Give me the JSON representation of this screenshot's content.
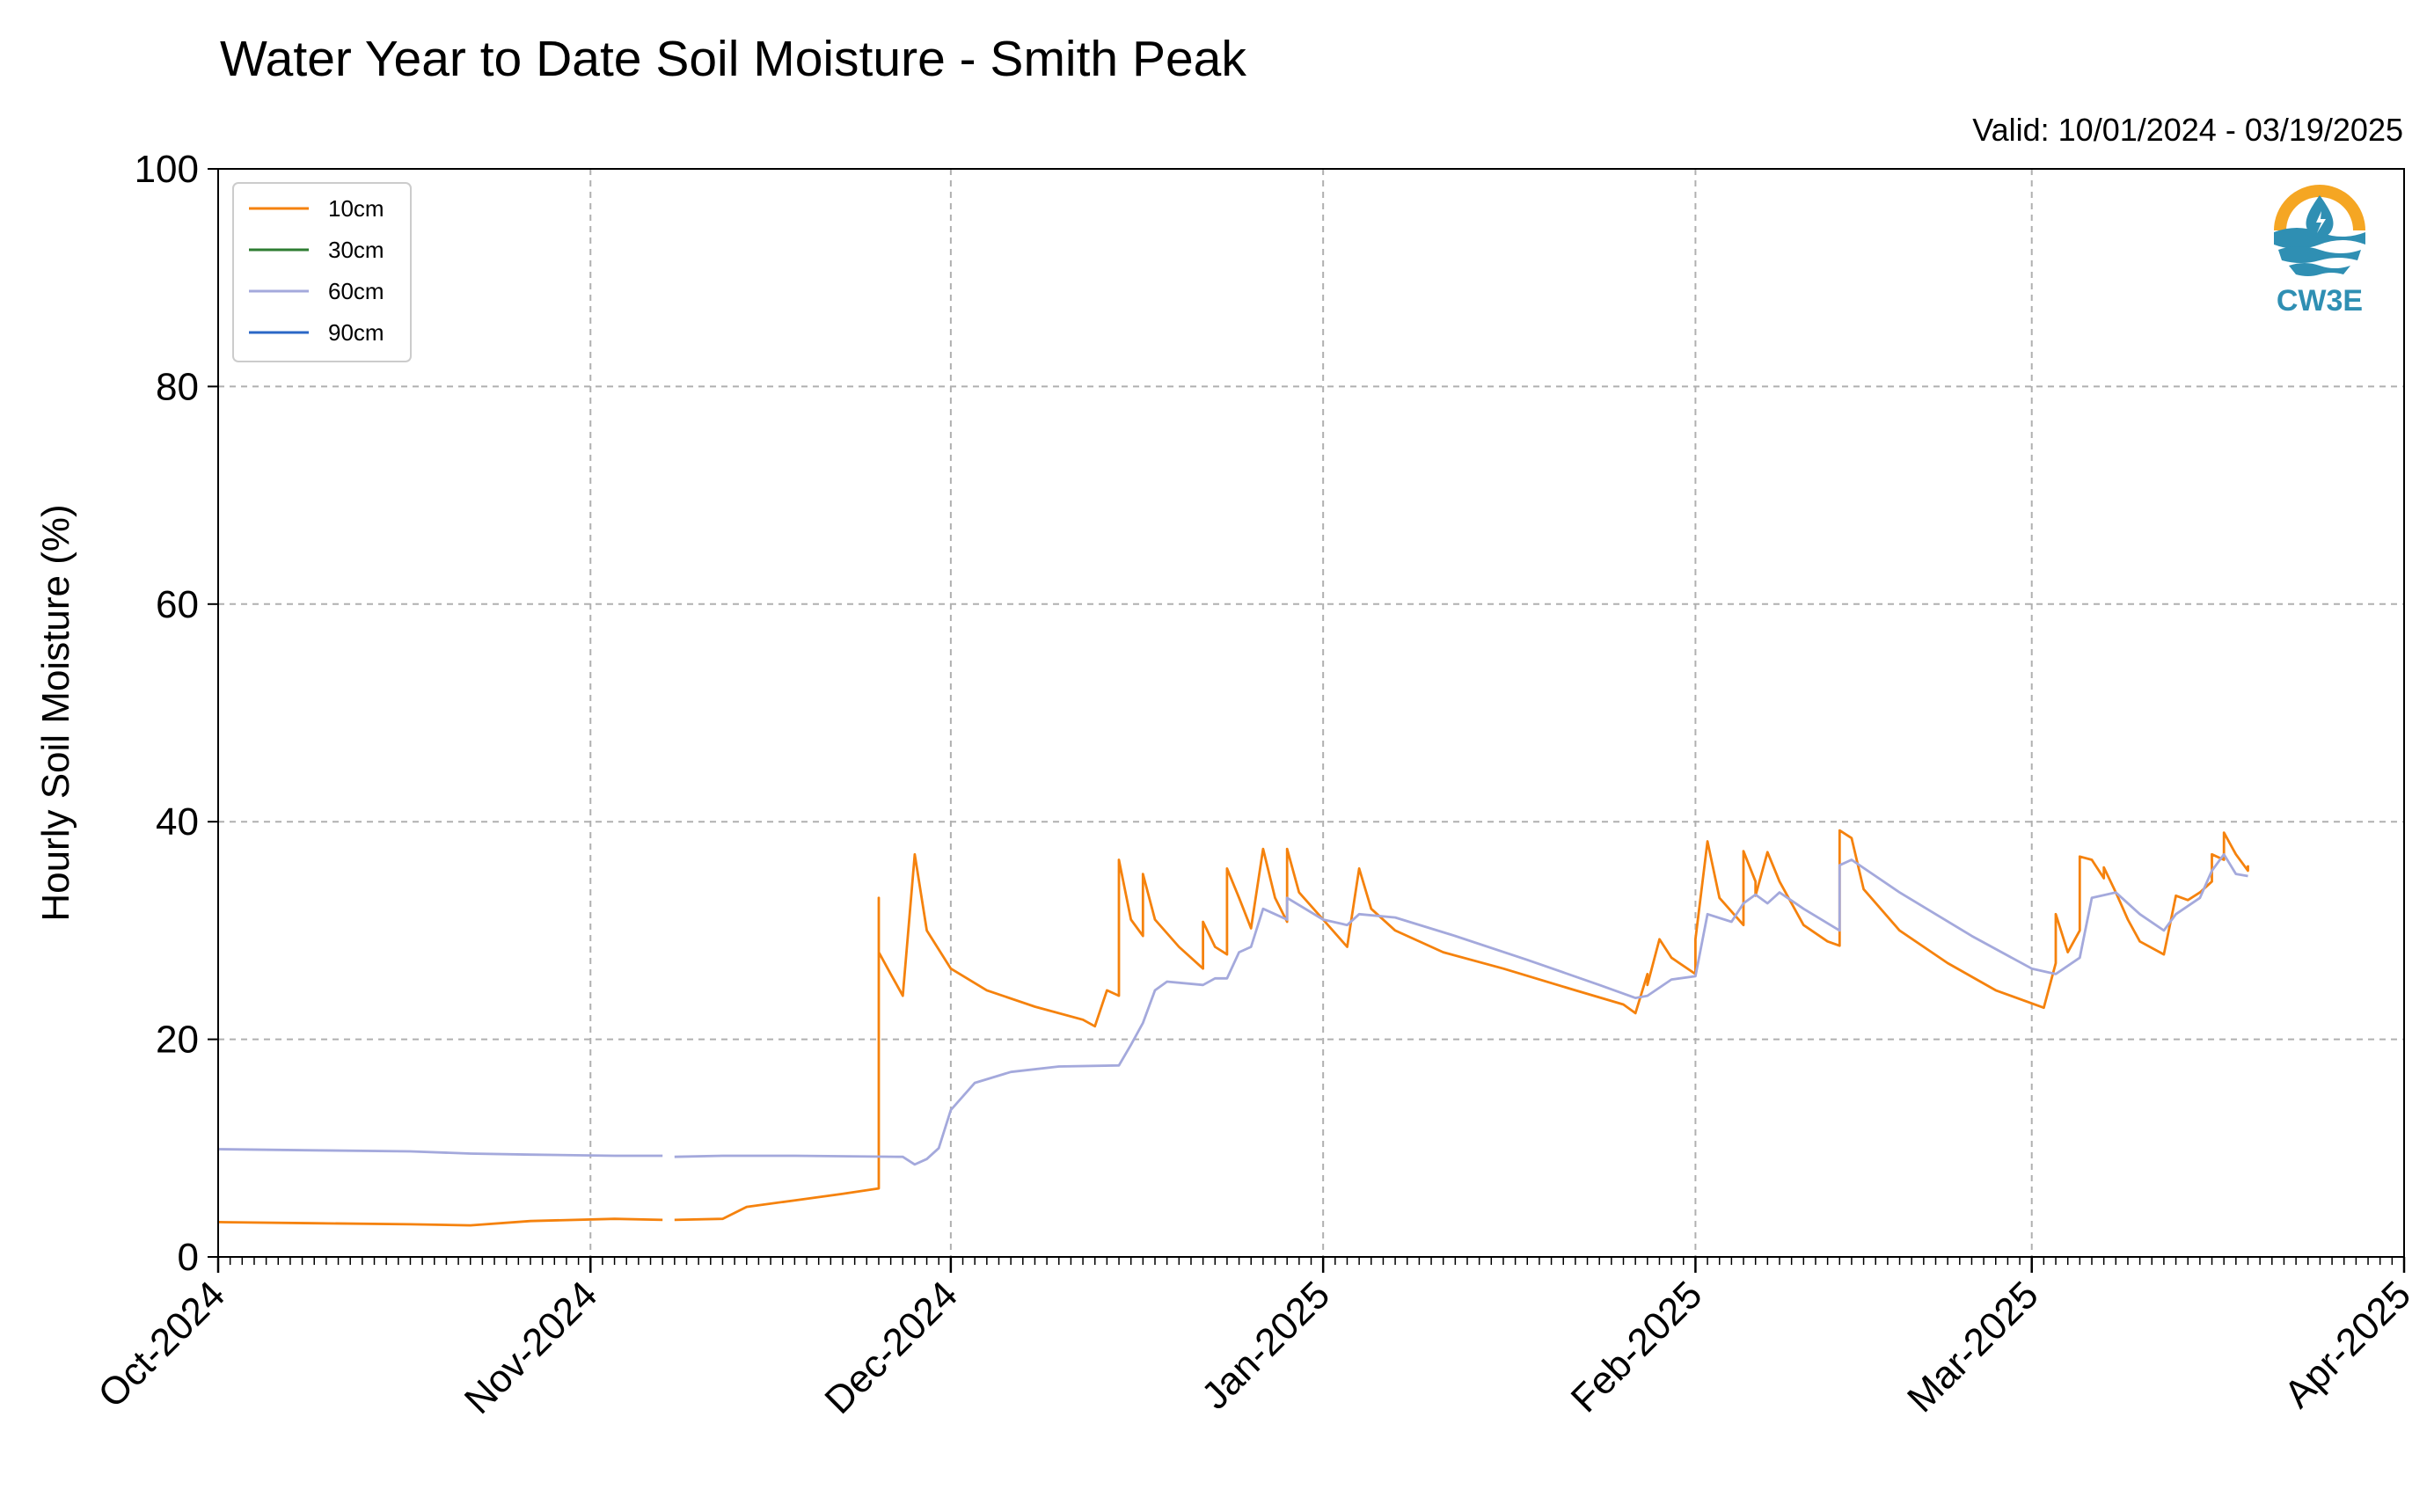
{
  "chart_data": {
    "type": "line",
    "title": "Water Year to Date Soil Moisture - Smith Peak",
    "subtitle": "Valid: 10/01/2024 - 03/19/2025",
    "ylabel": "Hourly Soil Moisture (%)",
    "xlabel": "",
    "x_range": [
      "2024-10-01",
      "2025-04-01"
    ],
    "ylim": [
      0,
      100
    ],
    "y_ticks": [
      0,
      20,
      40,
      60,
      80,
      100
    ],
    "x_ticks": [
      {
        "date": "2024-10-01",
        "label": "Oct-2024"
      },
      {
        "date": "2024-11-01",
        "label": "Nov-2024"
      },
      {
        "date": "2024-12-01",
        "label": "Dec-2024"
      },
      {
        "date": "2025-01-01",
        "label": "Jan-2025"
      },
      {
        "date": "2025-02-01",
        "label": "Feb-2025"
      },
      {
        "date": "2025-03-01",
        "label": "Mar-2025"
      },
      {
        "date": "2025-04-01",
        "label": "Apr-2025"
      }
    ],
    "grid": true,
    "legend_position": "top-left",
    "logo_text": "CW3E",
    "series": [
      {
        "name": "10cm",
        "color": "#f5820d",
        "points": [
          [
            "2024-10-01",
            3.2
          ],
          [
            "2024-10-09",
            3.1
          ],
          [
            "2024-10-17",
            3.0
          ],
          [
            "2024-10-22",
            2.9
          ],
          [
            "2024-10-27",
            3.3
          ],
          [
            "2024-11-03",
            3.5
          ],
          [
            "2024-11-07",
            3.4
          ],
          null,
          [
            "2024-11-08",
            3.4
          ],
          [
            "2024-11-12",
            3.5
          ],
          [
            "2024-11-14",
            4.6
          ],
          [
            "2024-11-18",
            5.2
          ],
          [
            "2024-11-22",
            5.8
          ],
          [
            "2024-11-25",
            6.3
          ],
          [
            "2024-11-25",
            33.0
          ],
          [
            "2024-11-25",
            28.0
          ],
          [
            "2024-11-26",
            26.0
          ],
          [
            "2024-11-27",
            24.0
          ],
          [
            "2024-11-28",
            37.0
          ],
          [
            "2024-11-29",
            30.0
          ],
          [
            "2024-12-01",
            26.5
          ],
          [
            "2024-12-04",
            24.5
          ],
          [
            "2024-12-08",
            23.0
          ],
          [
            "2024-12-12",
            21.8
          ],
          [
            "2024-12-13",
            21.2
          ],
          [
            "2024-12-14",
            24.5
          ],
          [
            "2024-12-15",
            24.0
          ],
          [
            "2024-12-15",
            36.5
          ],
          [
            "2024-12-16",
            31.0
          ],
          [
            "2024-12-17",
            29.5
          ],
          [
            "2024-12-17",
            35.2
          ],
          [
            "2024-12-18",
            31.0
          ],
          [
            "2024-12-20",
            28.5
          ],
          [
            "2024-12-22",
            26.5
          ],
          [
            "2024-12-22",
            30.8
          ],
          [
            "2024-12-23",
            28.5
          ],
          [
            "2024-12-24",
            27.8
          ],
          [
            "2024-12-24",
            35.7
          ],
          [
            "2024-12-25",
            33.0
          ],
          [
            "2024-12-26",
            30.2
          ],
          [
            "2024-12-27",
            37.5
          ],
          [
            "2024-12-28",
            33.0
          ],
          [
            "2024-12-29",
            30.8
          ],
          [
            "2024-12-29",
            37.5
          ],
          [
            "2024-12-30",
            33.5
          ],
          [
            "2025-01-01",
            31.0
          ],
          [
            "2025-01-03",
            28.5
          ],
          [
            "2025-01-04",
            35.7
          ],
          [
            "2025-01-05",
            32.0
          ],
          [
            "2025-01-07",
            30.0
          ],
          [
            "2025-01-11",
            28.0
          ],
          [
            "2025-01-16",
            26.5
          ],
          [
            "2025-01-22",
            24.5
          ],
          [
            "2025-01-26",
            23.2
          ],
          [
            "2025-01-27",
            22.4
          ],
          [
            "2025-01-28",
            26.0
          ],
          [
            "2025-01-28",
            25.0
          ],
          [
            "2025-01-29",
            29.2
          ],
          [
            "2025-01-30",
            27.5
          ],
          [
            "2025-02-01",
            26.0
          ],
          [
            "2025-02-01",
            29.2
          ],
          [
            "2025-02-02",
            38.2
          ],
          [
            "2025-02-03",
            33.0
          ],
          [
            "2025-02-05",
            30.5
          ],
          [
            "2025-02-05",
            37.3
          ],
          [
            "2025-02-06",
            34.5
          ],
          [
            "2025-02-06",
            33.2
          ],
          [
            "2025-02-07",
            37.2
          ],
          [
            "2025-02-08",
            34.5
          ],
          [
            "2025-02-10",
            30.5
          ],
          [
            "2025-02-12",
            29.0
          ],
          [
            "2025-02-13",
            28.6
          ],
          [
            "2025-02-13",
            39.2
          ],
          [
            "2025-02-14",
            38.5
          ],
          [
            "2025-02-15",
            33.8
          ],
          [
            "2025-02-18",
            30.0
          ],
          [
            "2025-02-22",
            27.0
          ],
          [
            "2025-02-26",
            24.5
          ],
          [
            "2025-03-02",
            22.9
          ],
          [
            "2025-03-03",
            27.0
          ],
          [
            "2025-03-03",
            31.5
          ],
          [
            "2025-03-04",
            28.0
          ],
          [
            "2025-03-05",
            30.0
          ],
          [
            "2025-03-05",
            36.8
          ],
          [
            "2025-03-06",
            36.5
          ],
          [
            "2025-03-07",
            34.8
          ],
          [
            "2025-03-07",
            35.8
          ],
          [
            "2025-03-08",
            33.5
          ],
          [
            "2025-03-09",
            31.0
          ],
          [
            "2025-03-10",
            29.0
          ],
          [
            "2025-03-12",
            27.8
          ],
          [
            "2025-03-13",
            33.2
          ],
          [
            "2025-03-14",
            32.8
          ],
          [
            "2025-03-15",
            33.5
          ],
          [
            "2025-03-16",
            34.5
          ],
          [
            "2025-03-16",
            37.0
          ],
          [
            "2025-03-17",
            36.5
          ],
          [
            "2025-03-17",
            39.0
          ],
          [
            "2025-03-18",
            37.0
          ],
          [
            "2025-03-19",
            35.5
          ],
          [
            "2025-03-19",
            36.0
          ]
        ]
      },
      {
        "name": "30cm",
        "color": "#2e7d32",
        "points": []
      },
      {
        "name": "60cm",
        "color": "#a4a9dc",
        "points": [
          [
            "2024-10-01",
            9.9
          ],
          [
            "2024-10-09",
            9.8
          ],
          [
            "2024-10-17",
            9.7
          ],
          [
            "2024-10-22",
            9.5
          ],
          [
            "2024-10-27",
            9.4
          ],
          [
            "2024-11-03",
            9.3
          ],
          [
            "2024-11-07",
            9.3
          ],
          null,
          [
            "2024-11-08",
            9.2
          ],
          [
            "2024-11-12",
            9.3
          ],
          [
            "2024-11-18",
            9.3
          ],
          [
            "2024-11-27",
            9.2
          ],
          [
            "2024-11-28",
            8.5
          ],
          [
            "2024-11-29",
            9.0
          ],
          [
            "2024-11-30",
            10.0
          ],
          [
            "2024-12-01",
            13.5
          ],
          [
            "2024-12-03",
            16.0
          ],
          [
            "2024-12-06",
            17.0
          ],
          [
            "2024-12-10",
            17.5
          ],
          [
            "2024-12-15",
            17.6
          ],
          [
            "2024-12-16",
            19.5
          ],
          [
            "2024-12-17",
            21.5
          ],
          [
            "2024-12-18",
            24.5
          ],
          [
            "2024-12-19",
            25.3
          ],
          [
            "2024-12-22",
            25.0
          ],
          [
            "2024-12-23",
            25.6
          ],
          [
            "2024-12-24",
            25.6
          ],
          [
            "2024-12-25",
            28.0
          ],
          [
            "2024-12-26",
            28.5
          ],
          [
            "2024-12-27",
            32.0
          ],
          [
            "2024-12-28",
            31.5
          ],
          [
            "2024-12-29",
            31.0
          ],
          [
            "2024-12-29",
            33.0
          ],
          [
            "2025-01-01",
            31.0
          ],
          [
            "2025-01-03",
            30.5
          ],
          [
            "2025-01-04",
            31.5
          ],
          [
            "2025-01-07",
            31.2
          ],
          [
            "2025-01-12",
            29.5
          ],
          [
            "2025-01-18",
            27.3
          ],
          [
            "2025-01-24",
            25.0
          ],
          [
            "2025-01-27",
            23.8
          ],
          [
            "2025-01-28",
            24.0
          ],
          [
            "2025-01-30",
            25.5
          ],
          [
            "2025-02-01",
            25.8
          ],
          [
            "2025-02-02",
            31.5
          ],
          [
            "2025-02-04",
            30.8
          ],
          [
            "2025-02-05",
            32.5
          ],
          [
            "2025-02-06",
            33.3
          ],
          [
            "2025-02-07",
            32.5
          ],
          [
            "2025-02-08",
            33.5
          ],
          [
            "2025-02-10",
            32.0
          ],
          [
            "2025-02-13",
            30.0
          ],
          [
            "2025-02-13",
            36.0
          ],
          [
            "2025-02-14",
            36.5
          ],
          [
            "2025-02-18",
            33.5
          ],
          [
            "2025-02-24",
            29.5
          ],
          [
            "2025-03-01",
            26.5
          ],
          [
            "2025-03-03",
            26.0
          ],
          [
            "2025-03-05",
            27.5
          ],
          [
            "2025-03-06",
            33.0
          ],
          [
            "2025-03-08",
            33.5
          ],
          [
            "2025-03-10",
            31.5
          ],
          [
            "2025-03-12",
            30.0
          ],
          [
            "2025-03-13",
            31.5
          ],
          [
            "2025-03-15",
            33.0
          ],
          [
            "2025-03-16",
            35.5
          ],
          [
            "2025-03-17",
            37.0
          ],
          [
            "2025-03-18",
            35.2
          ],
          [
            "2025-03-19",
            35.0
          ]
        ]
      },
      {
        "name": "90cm",
        "color": "#2b67c6",
        "points": []
      }
    ]
  }
}
